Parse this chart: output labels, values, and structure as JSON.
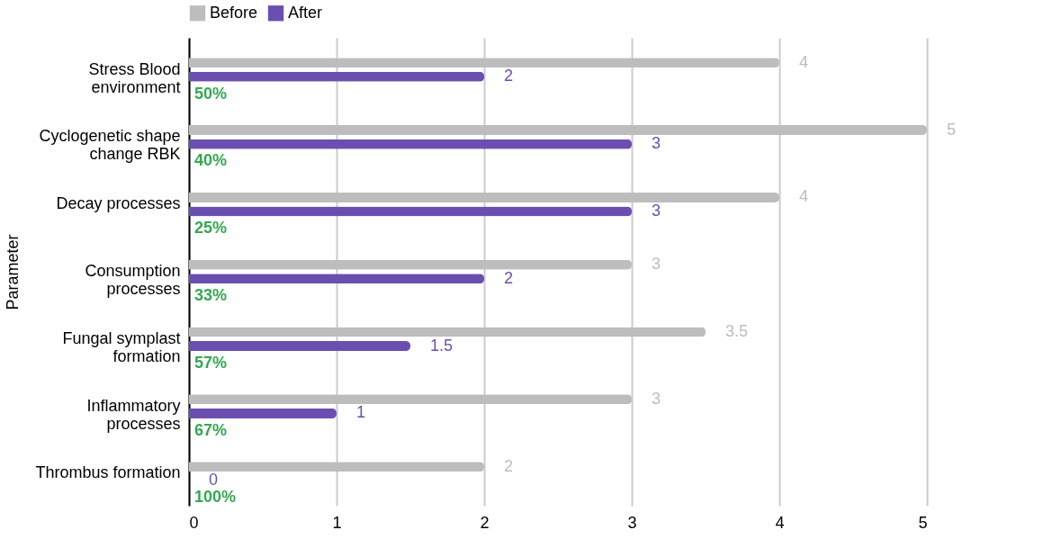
{
  "chart_data": {
    "type": "bar",
    "orientation": "horizontal",
    "ylabel": "Parameter",
    "categories": [
      "Stress Blood environment",
      "Cyclogenetic shape change RBK",
      "Decay processes",
      "Consumption processes",
      "Fungal symplast formation",
      "Inflammatory processes",
      "Thrombus formation"
    ],
    "series": [
      {
        "name": "Before",
        "color": "#bdbdbd",
        "values": [
          4,
          5,
          4,
          3,
          3.5,
          3,
          2
        ]
      },
      {
        "name": "After",
        "color": "#6a4fb0",
        "values": [
          2,
          3,
          3,
          2,
          1.5,
          1,
          0
        ]
      }
    ],
    "xlim": [
      0,
      5
    ],
    "xticks": [
      0,
      1,
      2,
      3,
      4,
      5
    ],
    "grid": "x",
    "legend": "top",
    "data_labels": true,
    "annotations": [
      "50%",
      "40%",
      "25%",
      "33%",
      "57%",
      "67%",
      "100%"
    ]
  }
}
